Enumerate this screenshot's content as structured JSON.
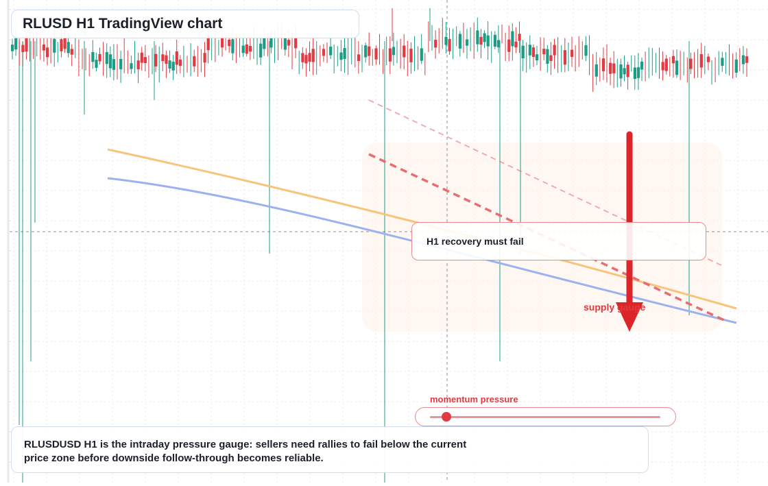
{
  "title": "RLUSD H1 TradingView chart",
  "callout": "H1 recovery must fail",
  "zone_label": "supply gauge",
  "gauge": {
    "label": "momentum pressure",
    "level": 0.07
  },
  "caption": "RLUSDUSD H1 is the intraday pressure gauge: sellers need rallies to fail below the current price zone before downside follow-through becomes reliable.",
  "colors": {
    "up": "#1a9c85",
    "down": "#e23a43",
    "ema_fast": "#f6c47a",
    "ema_slow": "#9cb2ef",
    "resistance": "#e56d73",
    "arrow": "#dd2428",
    "zone": "#fff3e8"
  },
  "chart_data": {
    "type": "candlestick",
    "timeframe": "H1",
    "symbol": "RLUSDUSD",
    "series": [
      {
        "name": "",
        "role": "fast moving average"
      },
      {
        "name": "",
        "role": "slow moving average"
      }
    ],
    "annotations": [
      "H1 recovery must fail",
      "supply gauge",
      "momentum pressure"
    ],
    "direction": "down",
    "grid": true,
    "legend": "none"
  }
}
